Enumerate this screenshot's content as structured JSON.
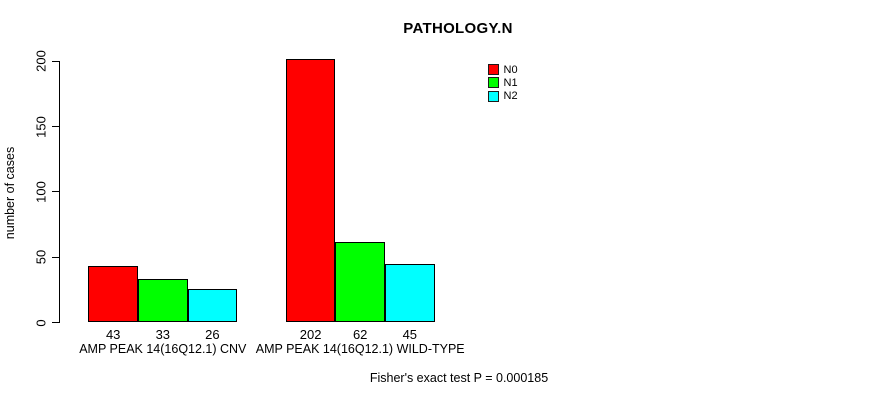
{
  "chart_data": {
    "type": "bar",
    "title": "PATHOLOGY.N",
    "categories": [
      "AMP PEAK 14(16Q12.1) CNV",
      "AMP PEAK 14(16Q12.1) WILD-TYPE"
    ],
    "series": [
      {
        "name": "N0",
        "color": "#ff0000",
        "values": [
          43,
          202
        ]
      },
      {
        "name": "N1",
        "color": "#00ff00",
        "values": [
          33,
          62
        ]
      },
      {
        "name": "N2",
        "color": "#00ffff",
        "values": [
          26,
          45
        ]
      }
    ],
    "xlabel": "",
    "ylabel": "number of cases",
    "yticks": [
      0,
      50,
      100,
      150,
      200
    ],
    "ylim": [
      0,
      200
    ],
    "grid": false,
    "legend_position": "top-right",
    "legend_entries": [
      "N0",
      "N1",
      "N2"
    ],
    "annotation": "Fisher's exact test P = 0.000185",
    "bar_border_color": "#000000",
    "background_color": "#ffffff"
  }
}
